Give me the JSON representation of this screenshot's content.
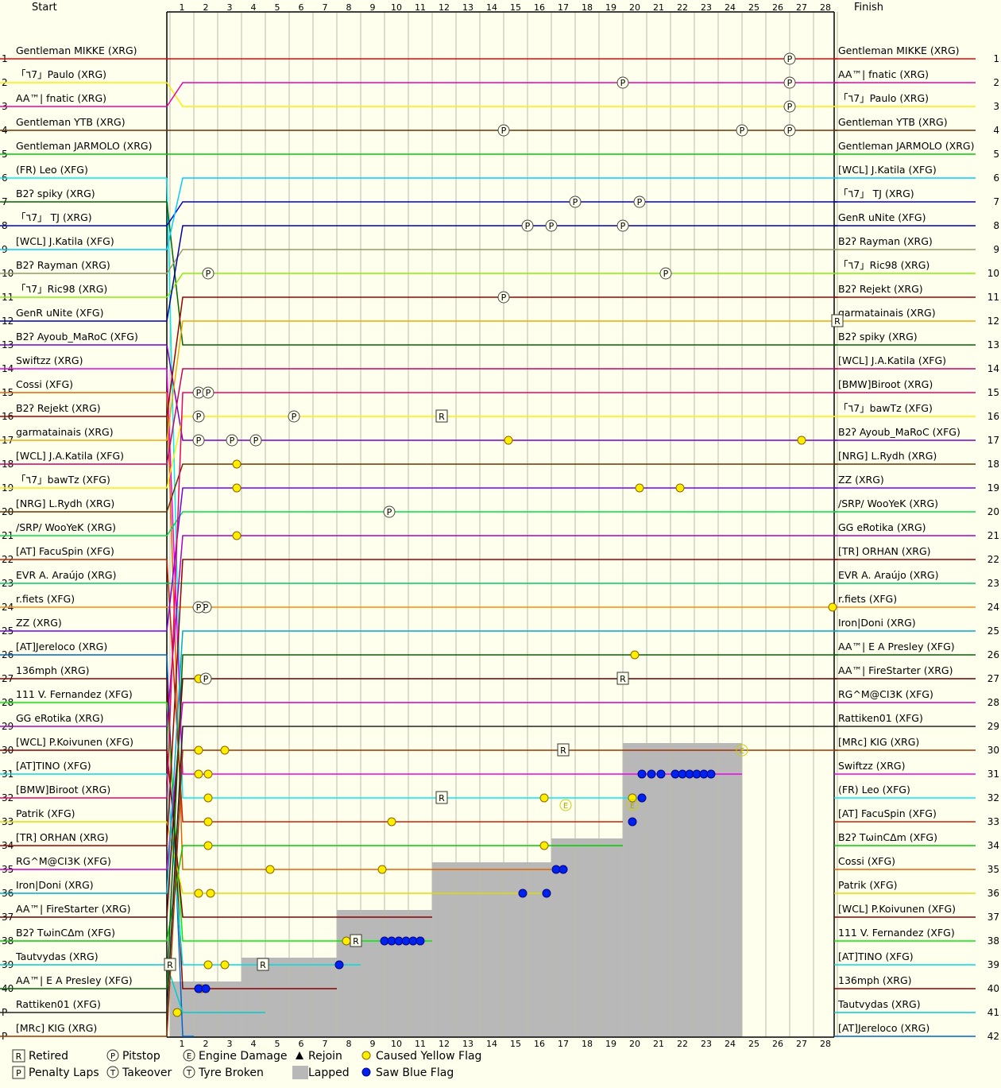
{
  "chart_data": {
    "type": "line",
    "header_start": "Start",
    "header_finish": "Finish",
    "laps": [
      1,
      2,
      3,
      4,
      5,
      6,
      7,
      8,
      9,
      10,
      11,
      12,
      13,
      14,
      15,
      16,
      17,
      18,
      19,
      20,
      21,
      22,
      23,
      24,
      25,
      26,
      27,
      28
    ],
    "position_labels": [
      "1",
      "2",
      "3",
      "4",
      "5",
      "6",
      "7",
      "8",
      "9",
      "10",
      "11",
      "12",
      "13",
      "14",
      "15",
      "16",
      "17",
      "18",
      "19",
      "20",
      "21",
      "22",
      "23",
      "24",
      "25",
      "26",
      "27",
      "28",
      "29",
      "30",
      "31",
      "32",
      "33",
      "34",
      "35",
      "36",
      "37",
      "38",
      "39",
      "40",
      "P",
      "P"
    ],
    "right_position_labels": [
      "1",
      "2",
      "3",
      "4",
      "5",
      "6",
      "7",
      "8",
      "9",
      "10",
      "11",
      "12",
      "13",
      "14",
      "15",
      "16",
      "17",
      "18",
      "19",
      "20",
      "21",
      "22",
      "23",
      "24",
      "25",
      "26",
      "27",
      "28",
      "29",
      "30",
      "31",
      "32",
      "33",
      "34",
      "35",
      "36",
      "37",
      "38",
      "39",
      "40",
      "41",
      "42"
    ],
    "start_grid": [
      "Gentleman MIKKE (XRG)",
      "「٦7」Paulo (XRG)",
      "AA™| fnatic (XRG)",
      "Gentleman YTB (XRG)",
      "Gentleman JARMOLO (XRG)",
      "(FR) Leo (XFG)",
      "B2ʔ spiky (XRG)",
      "「٦7」 TJ (XRG)",
      "[WCL] J.Katila (XFG)",
      "B2ʔ Rayman (XRG)",
      "「٦7」Ric98 (XRG)",
      "GenR uNite (XFG)",
      "B2ʔ Ayoub_MaRoC (XFG)",
      "Swiftzz (XRG)",
      "Cossi (XFG)",
      "B2ʔ Rejekt (XRG)",
      "garmatainais (XRG)",
      "[WCL] J.A.Katila (XFG)",
      "「٦7」bawTz (XFG)",
      "[NRG] L.Rydh (XRG)",
      "/SRP/ WooYeK (XRG)",
      "[AT] FacuSpin (XFG)",
      "EVR A. Araújo (XRG)",
      "r.fiets (XFG)",
      "ZZ (XRG)",
      "[AT]Jereloco (XRG)",
      "136mph (XRG)",
      "111 V. Fernandez (XFG)",
      "GG eRotika (XRG)",
      "[WCL] P.Koivunen (XFG)",
      "[AT]TINO (XFG)",
      "[BMW]Biroot (XRG)",
      "Patrik (XFG)",
      "[TR] ORHAN (XRG)",
      "RG^M@CI3K (XFG)",
      "Iron|Doni (XRG)",
      "AA™| FireStarter (XRG)",
      "B2ʔ TωinCΔm (XFG)",
      "Tautvydas (XRG)",
      "AA™| E A Presley (XFG)",
      "Rattiken01 (XFG)",
      "[MRc] KIG (XRG)"
    ],
    "finish_order": [
      "Gentleman MIKKE (XRG)",
      "AA™| fnatic (XRG)",
      "「٦7」Paulo (XRG)",
      "Gentleman YTB (XRG)",
      "Gentleman JARMOLO (XRG)",
      "[WCL] J.Katila (XFG)",
      "「٦7」 TJ (XRG)",
      "GenR uNite (XFG)",
      "B2ʔ Rayman (XRG)",
      "「٦7」Ric98 (XRG)",
      "B2ʔ Rejekt (XRG)",
      "garmatainais (XRG)",
      "B2ʔ spiky (XRG)",
      "[WCL] J.A.Katila (XFG)",
      "[BMW]Biroot (XRG)",
      "「٦7」bawTz (XFG)",
      "B2ʔ Ayoub_MaRoC (XFG)",
      "[NRG] L.Rydh (XRG)",
      "ZZ (XRG)",
      "/SRP/ WooYeK (XRG)",
      "GG eRotika (XRG)",
      "[TR] ORHAN (XRG)",
      "EVR A. Araújo (XRG)",
      "r.fiets (XFG)",
      "Iron|Doni (XRG)",
      "AA™| E A Presley (XFG)",
      "AA™| FireStarter (XRG)",
      "RG^M@CI3K (XFG)",
      "Rattiken01 (XFG)",
      "[MRc] KIG (XRG)",
      "Swiftzz (XRG)",
      "(FR) Leo (XFG)",
      "[AT] FacuSpin (XFG)",
      "B2ʔ TωinCΔm (XFG)",
      "Cossi (XFG)",
      "Patrik (XFG)",
      "[WCL] P.Koivunen (XFG)",
      "111 V. Fernandez (XFG)",
      "[AT]TINO (XFG)",
      "136mph (XRG)",
      "Tautvydas (XRG)",
      "[AT]Jereloco (XRG)"
    ],
    "laps_completed": {
      "Swiftzz (XRG)": 24,
      "(FR) Leo (XFG)": 20,
      "[AT] FacuSpin (XFG)": 19,
      "B2ʔ TωinCΔm (XFG)": 19,
      "Cossi (XFG)": 16,
      "Patrik (XFG)": 16,
      "[WCL] P.Koivunen (XFG)": 11,
      "111 V. Fernandez (XFG)": 11,
      "[AT]TINO (XFG)": 8,
      "136mph (XRG)": 7,
      "Tautvydas (XRG)": 4,
      "[AT]Jereloco (XRG)": 1
    },
    "lapped_area_positions": {
      "1": 41,
      "2": 41,
      "3": 41,
      "4": 40,
      "5": 40,
      "6": 40,
      "7": 40,
      "8": 38,
      "9": 38,
      "10": 38,
      "11": 38,
      "12": 36,
      "13": 36,
      "14": 36,
      "15": 36,
      "16": 36,
      "17": 35,
      "18": 35,
      "19": 35,
      "20": 31,
      "21": 31,
      "22": 31,
      "23": 31,
      "24": 31
    },
    "events": {
      "retired": [
        {
          "lap": 0,
          "pos": 39
        },
        {
          "lap": 3.9,
          "pos": 39
        },
        {
          "lap": 7.8,
          "pos": 38
        },
        {
          "lap": 11.4,
          "pos": 16
        },
        {
          "lap": 11.4,
          "pos": 32
        },
        {
          "lap": 16.5,
          "pos": 30
        },
        {
          "lap": 19,
          "pos": 27
        },
        {
          "lap": 28,
          "pos": 12
        }
      ],
      "pitstop": [
        {
          "lap": 26,
          "pos": 1
        },
        {
          "lap": 19,
          "pos": 2
        },
        {
          "lap": 26,
          "pos": 2
        },
        {
          "lap": 26,
          "pos": 3
        },
        {
          "lap": 14,
          "pos": 4
        },
        {
          "lap": 24,
          "pos": 4
        },
        {
          "lap": 26,
          "pos": 4
        },
        {
          "lap": 17,
          "pos": 7
        },
        {
          "lap": 19.7,
          "pos": 7
        },
        {
          "lap": 15,
          "pos": 8
        },
        {
          "lap": 16,
          "pos": 8
        },
        {
          "lap": 19,
          "pos": 8
        },
        {
          "lap": 20.8,
          "pos": 10
        },
        {
          "lap": 1.6,
          "pos": 10
        },
        {
          "lap": 14,
          "pos": 11
        },
        {
          "lap": 1.2,
          "pos": 15
        },
        {
          "lap": 1.6,
          "pos": 15
        },
        {
          "lap": 1.2,
          "pos": 16
        },
        {
          "lap": 5.2,
          "pos": 16
        },
        {
          "lap": 1.2,
          "pos": 17
        },
        {
          "lap": 2.6,
          "pos": 17
        },
        {
          "lap": 3.6,
          "pos": 17
        },
        {
          "lap": 9.2,
          "pos": 20
        },
        {
          "lap": 1.5,
          "pos": 24
        },
        {
          "lap": 1.2,
          "pos": 24
        },
        {
          "lap": 1.5,
          "pos": 27
        }
      ],
      "engine_damage": [
        {
          "lap": 16.6,
          "pos": 32.3
        },
        {
          "lap": 19.4,
          "pos": 32.3
        },
        {
          "lap": 24,
          "pos": 30
        }
      ],
      "yellow_flag": [
        {
          "lap": 14.2,
          "pos": 17
        },
        {
          "lap": 26.5,
          "pos": 17
        },
        {
          "lap": 2.8,
          "pos": 18
        },
        {
          "lap": 2.8,
          "pos": 19
        },
        {
          "lap": 19.7,
          "pos": 19
        },
        {
          "lap": 21.4,
          "pos": 19
        },
        {
          "lap": 2.8,
          "pos": 21
        },
        {
          "lap": 27.8,
          "pos": 24
        },
        {
          "lap": 19.5,
          "pos": 26
        },
        {
          "lap": 1.2,
          "pos": 27
        },
        {
          "lap": 1.2,
          "pos": 30
        },
        {
          "lap": 2.3,
          "pos": 30
        },
        {
          "lap": 1.2,
          "pos": 31
        },
        {
          "lap": 1.6,
          "pos": 31
        },
        {
          "lap": 1.6,
          "pos": 32
        },
        {
          "lap": 15.7,
          "pos": 32
        },
        {
          "lap": 19.4,
          "pos": 32
        },
        {
          "lap": 1.6,
          "pos": 33
        },
        {
          "lap": 9.3,
          "pos": 33
        },
        {
          "lap": 1.6,
          "pos": 34
        },
        {
          "lap": 15.7,
          "pos": 34
        },
        {
          "lap": 4.2,
          "pos": 35
        },
        {
          "lap": 8.9,
          "pos": 35
        },
        {
          "lap": 1.2,
          "pos": 36
        },
        {
          "lap": 1.7,
          "pos": 36
        },
        {
          "lap": 7.4,
          "pos": 38
        },
        {
          "lap": 1.6,
          "pos": 39
        },
        {
          "lap": 2.3,
          "pos": 39
        },
        {
          "lap": 1.3,
          "pos": 40
        },
        {
          "lap": 0.3,
          "pos": 41
        }
      ],
      "blue_flag": [
        {
          "lap": 1.2,
          "pos": 40
        },
        {
          "lap": 1.5,
          "pos": 40
        },
        {
          "lap": 7.1,
          "pos": 39
        },
        {
          "lap": 9,
          "pos": 38
        },
        {
          "lap": 9.3,
          "pos": 38
        },
        {
          "lap": 9.6,
          "pos": 38
        },
        {
          "lap": 9.9,
          "pos": 38
        },
        {
          "lap": 10.2,
          "pos": 38
        },
        {
          "lap": 10.5,
          "pos": 38
        },
        {
          "lap": 14.8,
          "pos": 36
        },
        {
          "lap": 15.8,
          "pos": 36
        },
        {
          "lap": 16.2,
          "pos": 35
        },
        {
          "lap": 16.5,
          "pos": 35
        },
        {
          "lap": 19.4,
          "pos": 33
        },
        {
          "lap": 19.8,
          "pos": 32
        },
        {
          "lap": 19.8,
          "pos": 31
        },
        {
          "lap": 20.2,
          "pos": 31
        },
        {
          "lap": 20.6,
          "pos": 31
        },
        {
          "lap": 21.2,
          "pos": 31
        },
        {
          "lap": 21.5,
          "pos": 31
        },
        {
          "lap": 21.8,
          "pos": 31
        },
        {
          "lap": 22.1,
          "pos": 31
        },
        {
          "lap": 22.4,
          "pos": 31
        },
        {
          "lap": 22.7,
          "pos": 31
        }
      ]
    }
  },
  "legend": [
    {
      "kind": "retired",
      "symbol": "R",
      "label": "Retired"
    },
    {
      "kind": "pitstop",
      "symbol": "P",
      "label": "Pitstop"
    },
    {
      "kind": "engine",
      "symbol": "E",
      "label": "Engine Damage"
    },
    {
      "kind": "rejoin",
      "symbol": "",
      "label": "Rejoin"
    },
    {
      "kind": "yellow",
      "symbol": "",
      "label": "Caused Yellow Flag"
    },
    {
      "kind": "penalty",
      "symbol": "P",
      "label": "Penalty Laps"
    },
    {
      "kind": "takeover",
      "symbol": "T",
      "label": "Takeover"
    },
    {
      "kind": "tyre",
      "symbol": "T",
      "label": "Tyre Broken"
    },
    {
      "kind": "lapped",
      "symbol": "",
      "label": "Lapped"
    },
    {
      "kind": "blue",
      "symbol": "",
      "label": "Saw Blue Flag"
    }
  ],
  "colors": {
    "background": "#ffffee",
    "grid": "#bbbbaa",
    "axis": "#000000",
    "lapped": "#b8b8b8",
    "yellow_flag": "#ffee00",
    "blue_flag": "#0022ee",
    "driver_palette": [
      "#ee0000",
      "#ffee00",
      "#ee00aa",
      "#663300",
      "#00cc00",
      "#00eeee",
      "#006600",
      "#0000cc",
      "#00ccff",
      "#999966",
      "#88ee00",
      "#0000aa",
      "#7700cc",
      "#ee00ee",
      "#dd6600",
      "#990000",
      "#eeaa00",
      "#cc0066",
      "#ffee00",
      "#663300",
      "#00dd44",
      "#cc2200",
      "#00cc66",
      "#ff8800",
      "#7700ee",
      "#0066cc",
      "#880000",
      "#00ee00",
      "#aa00cc",
      "#880000",
      "#00dddd",
      "#ee0066",
      "#dddd00",
      "#990000",
      "#cc00cc",
      "#00aacc",
      "#660000",
      "#00cc00",
      "#00cccc",
      "#006600",
      "#222222",
      "#993300"
    ]
  }
}
